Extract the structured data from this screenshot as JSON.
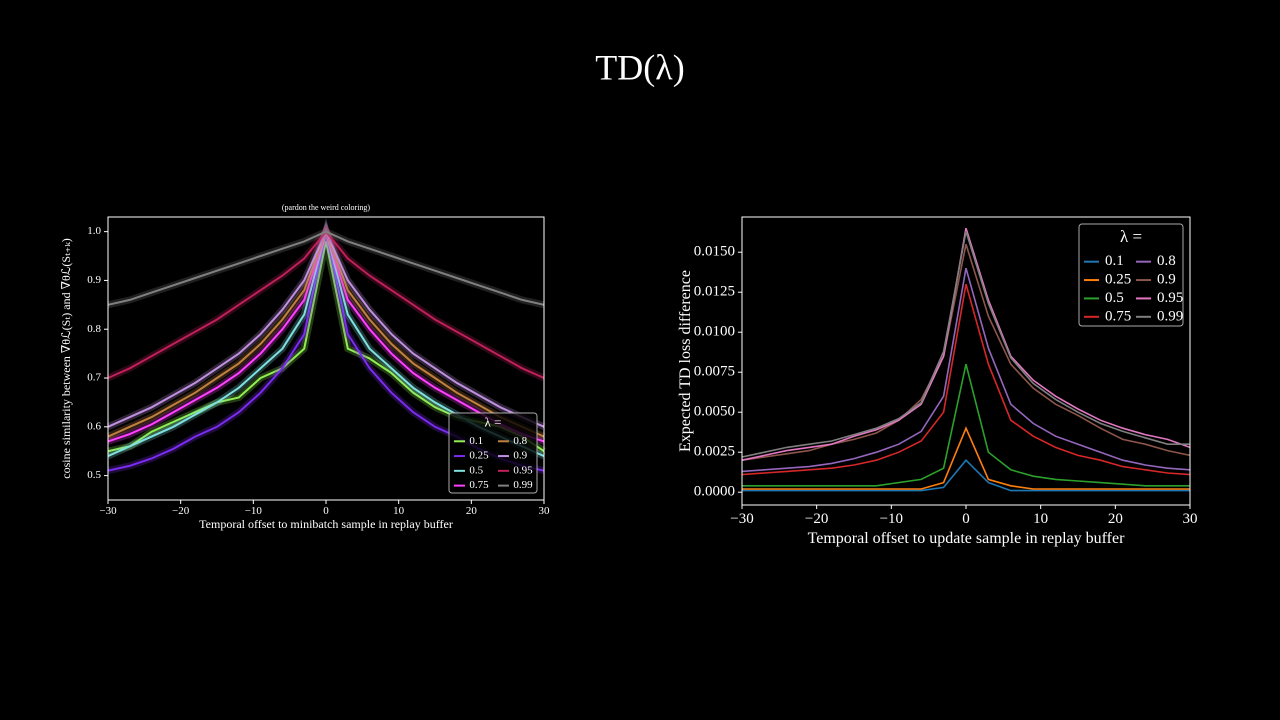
{
  "title": "TD(λ)",
  "chart_data": [
    {
      "type": "line",
      "title": "(pardon the weird coloring)",
      "ylabel": "cosine similarity between ∇θℒ(Sₜ) and ∇θℒ(Sₜ₊ₖ)",
      "xlabel": "Temporal offset to minibatch sample in replay buffer",
      "xlim": [
        -30,
        30
      ],
      "ylim": [
        0.45,
        1.03
      ],
      "xticks": [
        {
          "value": -30,
          "label": "−30"
        },
        {
          "value": -20,
          "label": "−20"
        },
        {
          "value": -10,
          "label": "−10"
        },
        0,
        10,
        20,
        30
      ],
      "yticks": [
        0.5,
        0.6,
        0.7,
        0.8,
        0.9,
        {
          "value": 1,
          "label": "1.0"
        }
      ],
      "legend": "lower right",
      "legend_title": "λ =",
      "x": [
        -30,
        -27,
        -24,
        -21,
        -18,
        -15,
        -12,
        -9,
        -6,
        -3,
        0,
        3,
        6,
        9,
        12,
        15,
        18,
        21,
        24,
        27,
        30
      ],
      "series": [
        {
          "name": "0.1",
          "color": "#90ee50",
          "values": [
            0.55,
            0.56,
            0.59,
            0.61,
            0.63,
            0.65,
            0.66,
            0.7,
            0.72,
            0.76,
            0.98,
            0.76,
            0.74,
            0.71,
            0.67,
            0.64,
            0.62,
            0.61,
            0.6,
            0.58,
            0.55
          ]
        },
        {
          "name": "0.25",
          "color": "#7b2cf0",
          "values": [
            0.51,
            0.52,
            0.535,
            0.555,
            0.58,
            0.6,
            0.63,
            0.67,
            0.72,
            0.79,
            1.0,
            0.79,
            0.72,
            0.67,
            0.63,
            0.6,
            0.58,
            0.555,
            0.535,
            0.52,
            0.51
          ]
        },
        {
          "name": "0.5",
          "color": "#7fe0e0",
          "values": [
            0.54,
            0.56,
            0.58,
            0.6,
            0.625,
            0.65,
            0.68,
            0.72,
            0.76,
            0.83,
            1.0,
            0.83,
            0.76,
            0.72,
            0.68,
            0.65,
            0.625,
            0.6,
            0.58,
            0.56,
            0.54
          ]
        },
        {
          "name": "0.75",
          "color": "#ff40ff",
          "values": [
            0.57,
            0.585,
            0.605,
            0.63,
            0.655,
            0.68,
            0.71,
            0.75,
            0.8,
            0.86,
            1.0,
            0.86,
            0.8,
            0.75,
            0.71,
            0.68,
            0.655,
            0.63,
            0.605,
            0.585,
            0.57
          ]
        },
        {
          "name": "0.8",
          "color": "#c08040",
          "values": [
            0.58,
            0.6,
            0.62,
            0.645,
            0.67,
            0.7,
            0.73,
            0.77,
            0.82,
            0.88,
            1.0,
            0.88,
            0.82,
            0.77,
            0.73,
            0.7,
            0.67,
            0.645,
            0.62,
            0.6,
            0.58
          ]
        },
        {
          "name": "0.9",
          "color": "#c090e0",
          "values": [
            0.6,
            0.62,
            0.64,
            0.665,
            0.69,
            0.72,
            0.75,
            0.79,
            0.84,
            0.9,
            1.0,
            0.9,
            0.84,
            0.79,
            0.75,
            0.72,
            0.69,
            0.665,
            0.64,
            0.62,
            0.6
          ]
        },
        {
          "name": "0.95",
          "color": "#c0205a",
          "values": [
            0.7,
            0.72,
            0.745,
            0.77,
            0.795,
            0.82,
            0.85,
            0.88,
            0.91,
            0.945,
            1.0,
            0.945,
            0.91,
            0.88,
            0.85,
            0.82,
            0.795,
            0.77,
            0.745,
            0.72,
            0.7
          ]
        },
        {
          "name": "0.99",
          "color": "#808080",
          "values": [
            0.85,
            0.86,
            0.875,
            0.89,
            0.905,
            0.92,
            0.935,
            0.95,
            0.965,
            0.98,
            1.0,
            0.98,
            0.965,
            0.95,
            0.935,
            0.92,
            0.905,
            0.89,
            0.875,
            0.86,
            0.85
          ]
        }
      ]
    },
    {
      "type": "line",
      "ylabel": "Expected TD loss difference",
      "xlabel": "Temporal offset to update sample in replay buffer",
      "xlim": [
        -30,
        30
      ],
      "ylim": [
        -0.0008,
        0.0172
      ],
      "xticks": [
        {
          "value": -30,
          "label": "−30"
        },
        {
          "value": -20,
          "label": "−20"
        },
        {
          "value": -10,
          "label": "−10"
        },
        0,
        10,
        20,
        30
      ],
      "yticks": [
        {
          "value": 0,
          "label": "0.0000"
        },
        {
          "value": 0.0025,
          "label": "0.0025"
        },
        {
          "value": 0.005,
          "label": "0.0050"
        },
        {
          "value": 0.0075,
          "label": "0.0075"
        },
        {
          "value": 0.01,
          "label": "0.0100"
        },
        {
          "value": 0.0125,
          "label": "0.0125"
        },
        {
          "value": 0.015,
          "label": "0.0150"
        }
      ],
      "legend": "upper right",
      "legend_title": "λ =",
      "x": [
        -30,
        -27,
        -24,
        -21,
        -18,
        -15,
        -12,
        -9,
        -6,
        -3,
        0,
        3,
        6,
        9,
        12,
        15,
        18,
        21,
        24,
        27,
        30
      ],
      "series": [
        {
          "name": "0.1",
          "color": "#1f77b4",
          "values": [
            0.0001,
            0.0001,
            0.0001,
            0.0001,
            0.0001,
            0.0001,
            0.0001,
            0.0001,
            0.0001,
            0.0003,
            0.002,
            0.0006,
            0.0001,
            0.0001,
            0.0001,
            0.0001,
            0.0001,
            0.0001,
            0.0001,
            0.0001,
            0.0001
          ]
        },
        {
          "name": "0.25",
          "color": "#ff7f0e",
          "values": [
            0.0002,
            0.0002,
            0.0002,
            0.0002,
            0.0002,
            0.0002,
            0.0002,
            0.0002,
            0.0002,
            0.0006,
            0.004,
            0.0008,
            0.0004,
            0.0002,
            0.0002,
            0.0002,
            0.0002,
            0.0002,
            0.0002,
            0.0002,
            0.0002
          ]
        },
        {
          "name": "0.5",
          "color": "#2ca02c",
          "values": [
            0.0004,
            0.0004,
            0.0004,
            0.0004,
            0.0004,
            0.0004,
            0.0004,
            0.0006,
            0.0008,
            0.0015,
            0.008,
            0.0025,
            0.0014,
            0.001,
            0.0008,
            0.0007,
            0.0006,
            0.0005,
            0.0004,
            0.0004,
            0.0004
          ]
        },
        {
          "name": "0.75",
          "color": "#d62728",
          "values": [
            0.0011,
            0.0012,
            0.0013,
            0.0014,
            0.0015,
            0.0017,
            0.002,
            0.0025,
            0.0032,
            0.005,
            0.013,
            0.008,
            0.0045,
            0.0035,
            0.0028,
            0.0023,
            0.002,
            0.0016,
            0.0014,
            0.0012,
            0.0011
          ]
        },
        {
          "name": "0.8",
          "color": "#9467bd",
          "values": [
            0.0013,
            0.0014,
            0.0015,
            0.0016,
            0.0018,
            0.0021,
            0.0025,
            0.003,
            0.0038,
            0.006,
            0.014,
            0.009,
            0.0055,
            0.0043,
            0.0035,
            0.003,
            0.0025,
            0.002,
            0.0017,
            0.0015,
            0.0014
          ]
        },
        {
          "name": "0.9",
          "color": "#8c564b",
          "values": [
            0.002,
            0.0022,
            0.0024,
            0.0026,
            0.003,
            0.0033,
            0.0037,
            0.0045,
            0.0058,
            0.0085,
            0.0155,
            0.011,
            0.008,
            0.0065,
            0.0055,
            0.0048,
            0.004,
            0.0033,
            0.003,
            0.0026,
            0.0023
          ]
        },
        {
          "name": "0.95",
          "color": "#e377c2",
          "values": [
            0.002,
            0.0023,
            0.0026,
            0.0028,
            0.003,
            0.0035,
            0.0039,
            0.0045,
            0.0055,
            0.0085,
            0.0165,
            0.012,
            0.0085,
            0.007,
            0.006,
            0.0052,
            0.0045,
            0.004,
            0.0036,
            0.0033,
            0.0028
          ]
        },
        {
          "name": "0.99",
          "color": "#7f7f7f",
          "values": [
            0.0022,
            0.0025,
            0.0028,
            0.003,
            0.0032,
            0.0036,
            0.004,
            0.0046,
            0.0056,
            0.0088,
            0.0163,
            0.0118,
            0.0084,
            0.0068,
            0.0058,
            0.005,
            0.0043,
            0.0038,
            0.0034,
            0.003,
            0.003
          ]
        }
      ]
    }
  ]
}
